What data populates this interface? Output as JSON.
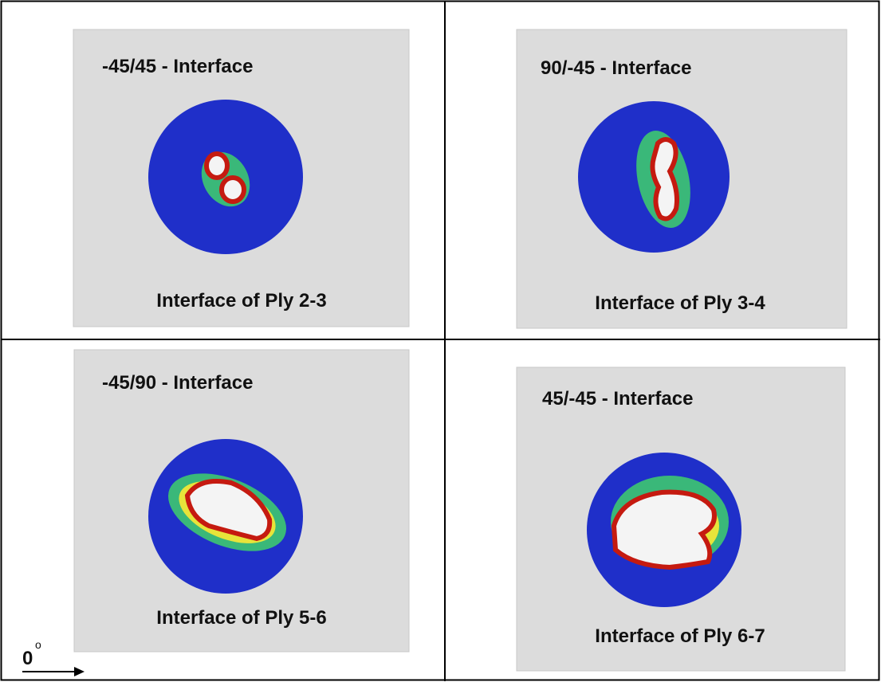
{
  "panels": [
    {
      "title": "-45/45 - Interface",
      "caption": "Interface of Ply 2-3"
    },
    {
      "title": "90/-45 - Interface",
      "caption": "Interface of Ply 3-4"
    },
    {
      "title": "-45/90 - Interface",
      "caption": "Interface of Ply 5-6"
    },
    {
      "title": "45/-45 - Interface",
      "caption": "Interface of Ply 6-7"
    }
  ],
  "orientation": {
    "angle": "0",
    "symbol": "o"
  }
}
